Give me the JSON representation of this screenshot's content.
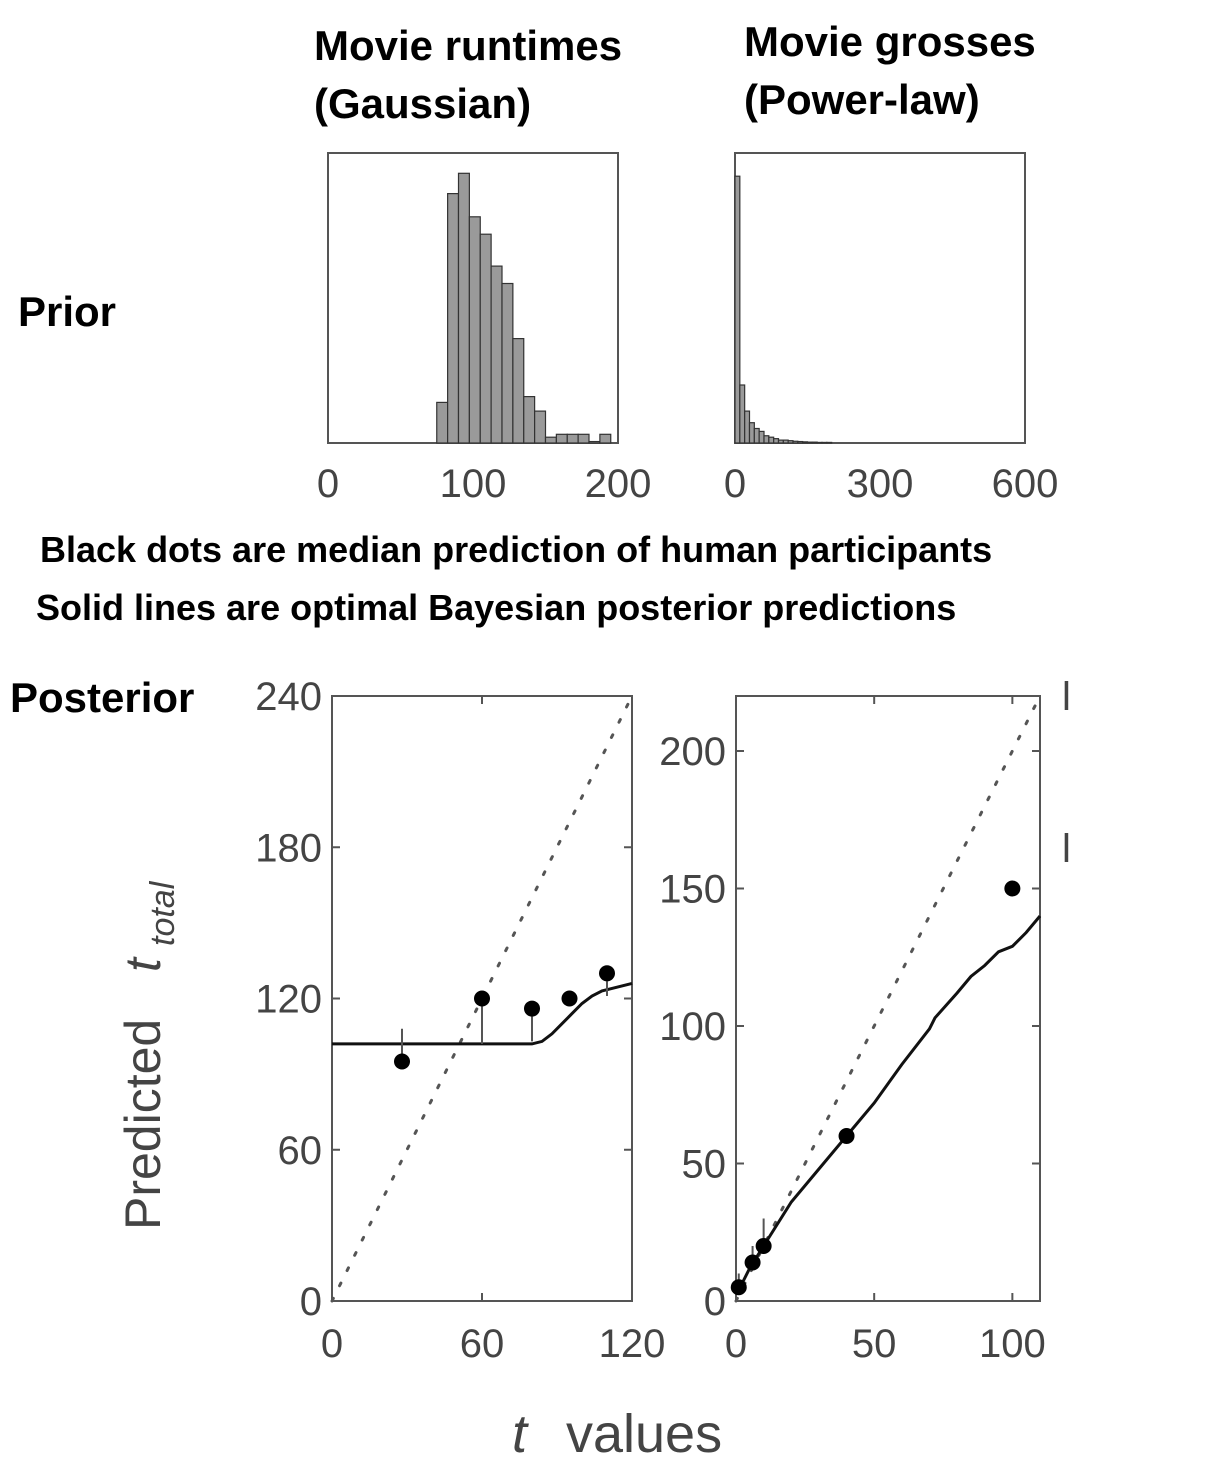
{
  "row_labels": {
    "prior": "Prior",
    "posterior": "Posterior"
  },
  "captions": [
    "Black dots are median prediction of human participants",
    "Solid lines are optimal Bayesian posterior predictions"
  ],
  "axis_labels": {
    "ylabel_main": "Predicted",
    "ylabel_sub": "total",
    "ylabel_t": "t",
    "xlabel_t": "t",
    "xlabel_rest": "values"
  },
  "chart_data": [
    {
      "type": "bar",
      "title_lines": [
        "Movie runtimes",
        "(Gaussian)"
      ],
      "xlim": [
        0,
        200
      ],
      "xticks": [
        "0",
        "100",
        "200"
      ],
      "bin_width": 7.5,
      "bins": [
        {
          "x": 75,
          "h": 0.14
        },
        {
          "x": 82.5,
          "h": 0.86
        },
        {
          "x": 90,
          "h": 0.93
        },
        {
          "x": 97.5,
          "h": 0.78
        },
        {
          "x": 105,
          "h": 0.72
        },
        {
          "x": 112.5,
          "h": 0.61
        },
        {
          "x": 120,
          "h": 0.55
        },
        {
          "x": 127.5,
          "h": 0.36
        },
        {
          "x": 135,
          "h": 0.16
        },
        {
          "x": 142.5,
          "h": 0.11
        },
        {
          "x": 150,
          "h": 0.02
        },
        {
          "x": 157.5,
          "h": 0.03
        },
        {
          "x": 165,
          "h": 0.03
        },
        {
          "x": 172.5,
          "h": 0.03
        },
        {
          "x": 180,
          "h": 0.005
        },
        {
          "x": 187.5,
          "h": 0.03
        }
      ]
    },
    {
      "type": "bar",
      "title_lines": [
        "Movie grosses",
        "(Power-law)"
      ],
      "xlim": [
        0,
        600
      ],
      "xticks": [
        "0",
        "300",
        "600"
      ],
      "bin_width": 10,
      "bins": [
        {
          "x": 0,
          "h": 0.92
        },
        {
          "x": 10,
          "h": 0.2
        },
        {
          "x": 20,
          "h": 0.11
        },
        {
          "x": 30,
          "h": 0.07
        },
        {
          "x": 40,
          "h": 0.05
        },
        {
          "x": 50,
          "h": 0.04
        },
        {
          "x": 60,
          "h": 0.025
        },
        {
          "x": 70,
          "h": 0.02
        },
        {
          "x": 80,
          "h": 0.015
        },
        {
          "x": 90,
          "h": 0.01
        },
        {
          "x": 100,
          "h": 0.01
        },
        {
          "x": 110,
          "h": 0.008
        },
        {
          "x": 120,
          "h": 0.006
        },
        {
          "x": 130,
          "h": 0.005
        },
        {
          "x": 140,
          "h": 0.004
        },
        {
          "x": 150,
          "h": 0.003
        },
        {
          "x": 160,
          "h": 0.003
        },
        {
          "x": 170,
          "h": 0.002
        },
        {
          "x": 180,
          "h": 0.002
        },
        {
          "x": 190,
          "h": 0.002
        }
      ]
    },
    {
      "type": "line",
      "xlim": [
        0,
        120
      ],
      "ylim": [
        0,
        240
      ],
      "xticks": [
        "0",
        "60",
        "120"
      ],
      "yticks": [
        "0",
        "60",
        "120",
        "180",
        "240"
      ],
      "identity_line": [
        [
          0,
          0
        ],
        [
          120,
          240
        ]
      ],
      "bayes_line": [
        [
          0,
          102
        ],
        [
          80,
          102
        ],
        [
          84,
          103
        ],
        [
          88,
          106
        ],
        [
          92,
          110
        ],
        [
          96,
          114
        ],
        [
          100,
          118
        ],
        [
          104,
          121
        ],
        [
          108,
          123
        ],
        [
          112,
          124
        ],
        [
          116,
          125
        ],
        [
          120,
          126
        ]
      ],
      "human_points": [
        {
          "x": 28,
          "y": 95,
          "err": 108
        },
        {
          "x": 60,
          "y": 120,
          "err": 102
        },
        {
          "x": 80,
          "y": 116,
          "err": 103
        },
        {
          "x": 95,
          "y": 120,
          "err": 118
        },
        {
          "x": 110,
          "y": 130,
          "err": 121
        }
      ]
    },
    {
      "type": "line",
      "xlim": [
        0,
        110
      ],
      "ylim": [
        0,
        220
      ],
      "xticks": [
        "0",
        "50",
        "100"
      ],
      "yticks": [
        "0",
        "50",
        "100",
        "150",
        "200"
      ],
      "right_tick_glyph": "l",
      "identity_line": [
        [
          0,
          0
        ],
        [
          110,
          220
        ]
      ],
      "bayes_line": [
        [
          1,
          4
        ],
        [
          5,
          12
        ],
        [
          10,
          20
        ],
        [
          20,
          36
        ],
        [
          30,
          48
        ],
        [
          40,
          60
        ],
        [
          50,
          72
        ],
        [
          60,
          86
        ],
        [
          70,
          99
        ],
        [
          72,
          103
        ],
        [
          80,
          112
        ],
        [
          85,
          118
        ],
        [
          90,
          122
        ],
        [
          95,
          127
        ],
        [
          100,
          129
        ],
        [
          105,
          134
        ],
        [
          110,
          140
        ]
      ],
      "human_points": [
        {
          "x": 1,
          "y": 5,
          "err": 10
        },
        {
          "x": 6,
          "y": 14,
          "err": 20
        },
        {
          "x": 10,
          "y": 20,
          "err": 30
        },
        {
          "x": 40,
          "y": 60,
          "err": 60
        },
        {
          "x": 100,
          "y": 150,
          "err": 150
        }
      ]
    }
  ]
}
